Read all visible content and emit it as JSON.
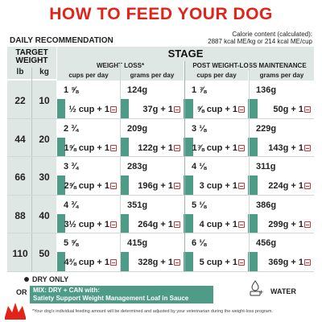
{
  "title": "HOW TO FEED YOUR DOG",
  "daily_label": "DAILY RECOMMENDATION",
  "calorie": {
    "line1": "Calorie content (calculated):",
    "line2": "2887 kcal ME/kg or 214 kcal ME/cup"
  },
  "target_weight": {
    "label_line1": "TARGET",
    "label_line2": "WEIGHT",
    "unit_lb": "lb",
    "unit_kg": "kg",
    "rows": [
      {
        "lb": "22",
        "kg": "10"
      },
      {
        "lb": "44",
        "kg": "20"
      },
      {
        "lb": "66",
        "kg": "30"
      },
      {
        "lb": "88",
        "kg": "40"
      },
      {
        "lb": "110",
        "kg": "50"
      }
    ]
  },
  "stage_label": "STAGE",
  "weight_loss_label": "WEIGHT LOSS*",
  "maintenance_label": "POST WEIGHT-LOSS MAINTENANCE",
  "col_cups": "cups per day",
  "col_grams": "grams per day",
  "rows": [
    {
      "wl_cups": "1 ⅝",
      "wl_grams": "124g",
      "wl_mix_cups": "½ cup + 1",
      "wl_mix_grams": "37g + 1",
      "m_cups": "1 ⅞",
      "m_grams": "136g",
      "m_mix_cups": "⅝ cup + 1",
      "m_mix_grams": "50g + 1"
    },
    {
      "wl_cups": "2 ¾",
      "wl_grams": "209g",
      "wl_mix_cups": "1⅝ cup + 1",
      "wl_mix_grams": "122g + 1",
      "m_cups": "3 ⅛",
      "m_grams": "229g",
      "m_mix_cups": "1⅞ cup + 1",
      "m_mix_grams": "143g + 1"
    },
    {
      "wl_cups": "3 ¾",
      "wl_grams": "283g",
      "wl_mix_cups": "2⅝ cup + 1",
      "wl_mix_grams": "196g + 1",
      "m_cups": "4 ⅛",
      "m_grams": "311g",
      "m_mix_cups": "3 cup + 1",
      "m_mix_grams": "224g + 1"
    },
    {
      "wl_cups": "4 ¾",
      "wl_grams": "351g",
      "wl_mix_cups": "3½ cup + 1",
      "wl_mix_grams": "264g + 1",
      "m_cups": "5 ⅛",
      "m_grams": "386g",
      "m_mix_cups": "4 cup + 1",
      "m_mix_grams": "299g + 1"
    },
    {
      "wl_cups": "5 ⅝",
      "wl_grams": "415g",
      "wl_mix_cups": "4⅜ cup + 1",
      "wl_mix_grams": "328g + 1",
      "m_cups": "6 ⅛",
      "m_grams": "456g",
      "m_mix_cups": "5 cup + 1",
      "m_mix_grams": "369g + 1"
    }
  ],
  "legend": {
    "dry_only": "DRY ONLY",
    "or": "OR",
    "mix_line1": "MIX: DRY + CAN with:",
    "mix_line2": "Satiety Support Weight Management Loaf in Sauce",
    "water": "WATER"
  },
  "footnote": "*Your dog's individual feeding amount will be determined and adjusted by your veterinarian during the weight-loss program.",
  "colors": {
    "title_red": "#e2231a",
    "band_teal": "#4e9b88",
    "header_gray": "#dfe7e5"
  }
}
